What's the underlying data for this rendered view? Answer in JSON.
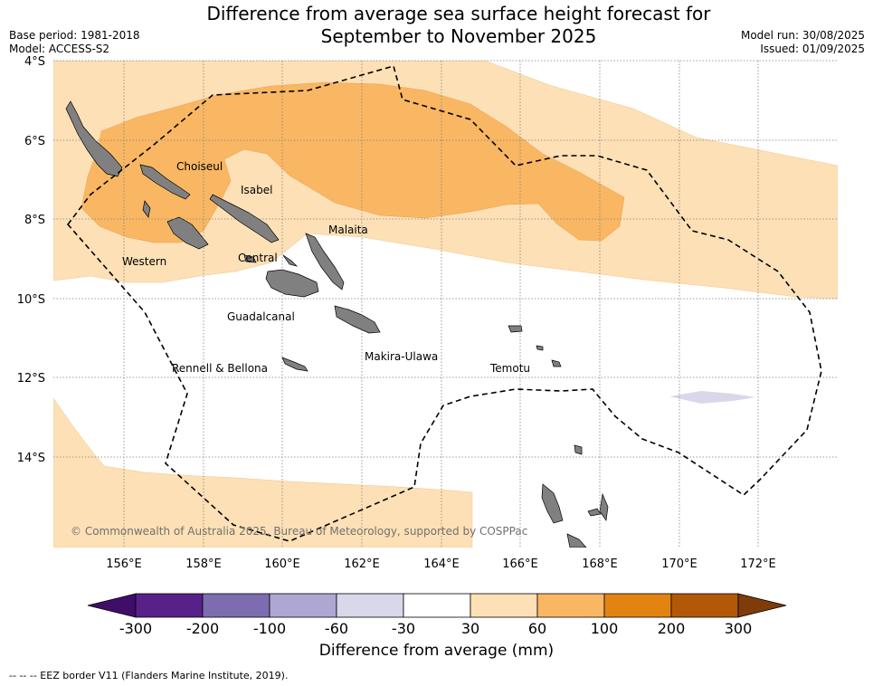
{
  "header": {
    "title_line1": "Difference from average sea surface height forecast for",
    "title_line2": "September to November 2025",
    "base_period": "Base period: 1981-2018",
    "model": "Model: ACCESS-S2",
    "model_run": "Model run: 30/08/2025",
    "issued": "Issued: 01/09/2025"
  },
  "map": {
    "lat_ticks": [
      "4°S",
      "6°S",
      "8°S",
      "10°S",
      "12°S",
      "14°S"
    ],
    "lon_ticks": [
      "156°E",
      "158°E",
      "160°E",
      "162°E",
      "164°E",
      "166°E",
      "168°E",
      "170°E",
      "172°E"
    ],
    "province_labels": [
      "Choiseul",
      "Isabel",
      "Western",
      "Malaita",
      "Central",
      "Guadalcanal",
      "Makira-Ulawa",
      "Rennell & Bellona",
      "Temotu"
    ],
    "credit": "© Commonwealth of Australia 2025, Bureau of Meteorology, supported by COSPPac",
    "colors": {
      "band_30_60": "#fde0b6",
      "band_60_100": "#f9b763",
      "band_neg60_neg30": "#d8d8ea",
      "land": "#808080",
      "eez_border": "#000000"
    }
  },
  "legend": {
    "ticks": [
      "-300",
      "-200",
      "-100",
      "-60",
      "-30",
      "30",
      "60",
      "100",
      "200",
      "300"
    ],
    "colors": [
      "#3f0e68",
      "#58218a",
      "#7d6db0",
      "#aea7d1",
      "#d8d8ea",
      "#ffffff",
      "#fde0b6",
      "#f9b763",
      "#e38312",
      "#b35806",
      "#7f3b08"
    ],
    "title": "Difference from average (mm)"
  },
  "footnote": "--  --  -- EEZ border V11 (Flanders Marine Institute, 2019)."
}
